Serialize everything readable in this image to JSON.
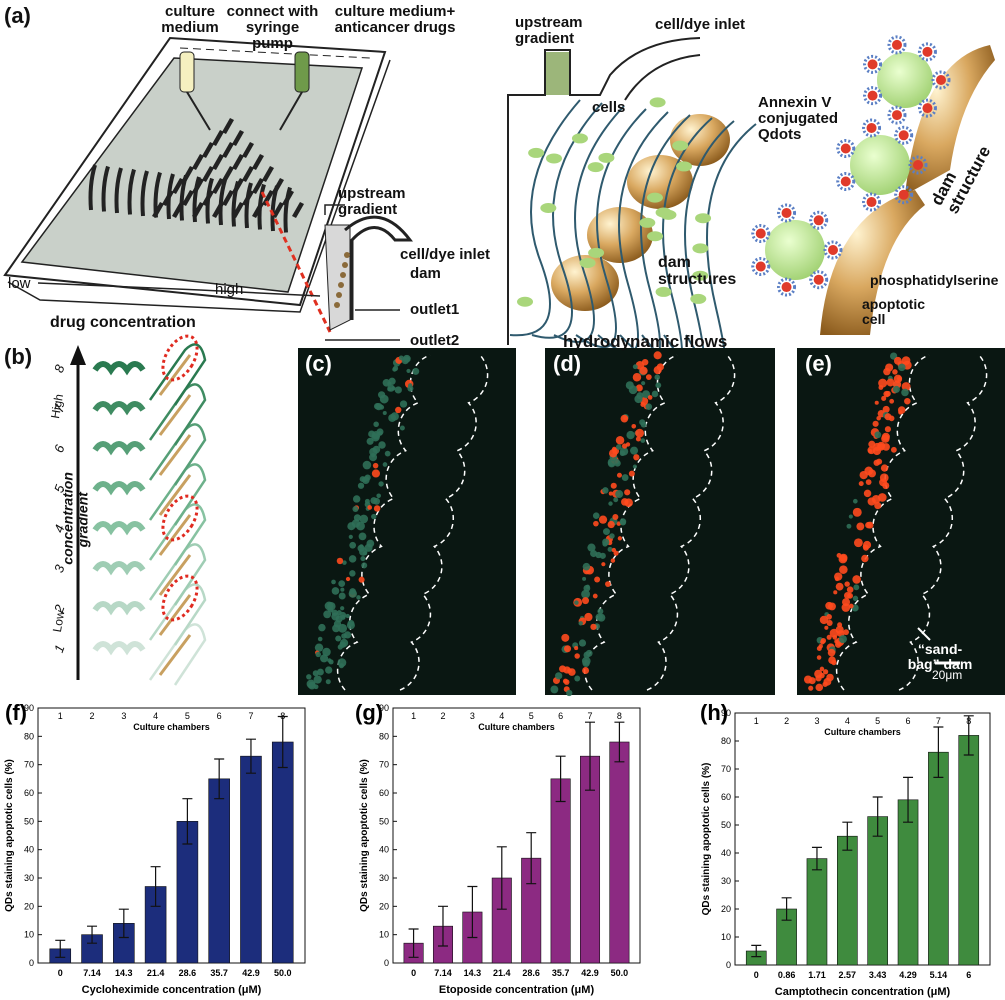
{
  "panel_a": {
    "label": "(a)",
    "culture_medium": "culture medium",
    "syringe": "connect with syringe pump",
    "drug_medium": "culture medium+ anticancer drugs",
    "inset_upstream": "upstream gradient",
    "inset_inlet": "cell/dye inlet",
    "inset_dam": "dam",
    "outlet1": "outlet1",
    "outlet2": "outlet2",
    "low": "low",
    "high": "high",
    "axis": "drug concentration",
    "mid_upstream": "upstream gradient",
    "mid_inlet": "cell/dye inlet",
    "cells": "cells",
    "dams": "dam structures",
    "flows": "hydrodynamic flows",
    "qdots": "Annexin V conjugated Qdots",
    "dam_structure": "dam structure",
    "ps": "phosphatidylserine",
    "apoptotic": "apoptotic cell"
  },
  "panel_b": {
    "label": "(b)",
    "chambers": [
      "1",
      "2",
      "3",
      "4",
      "5",
      "6",
      "7",
      "8"
    ],
    "high": "High",
    "low": "Low",
    "axis": "concentration gradient"
  },
  "panel_c": {
    "label": "(c)"
  },
  "panel_d": {
    "label": "(d)"
  },
  "panel_e": {
    "label": "(e)",
    "dam": "“sand-bag” dam",
    "scale": "20μm"
  },
  "chart_data": [
    {
      "type": "bar",
      "panel_label": "(f)",
      "categories": [
        "0",
        "7.14",
        "14.3",
        "21.4",
        "28.6",
        "35.7",
        "42.9",
        "50.0"
      ],
      "values": [
        5,
        10,
        14,
        27,
        50,
        65,
        73,
        78
      ],
      "errors": [
        3,
        3,
        5,
        7,
        8,
        7,
        6,
        9
      ],
      "color": "#1c2d7c",
      "x_label": "Cycloheximide concentration (μM)",
      "y_label": "QDs staining apoptotic cells (%)",
      "top_categories": [
        "1",
        "2",
        "3",
        "4",
        "5",
        "6",
        "7",
        "8"
      ],
      "top_label": "Culture chambers",
      "ylim": [
        0,
        90
      ],
      "yticks": [
        0,
        10,
        20,
        30,
        40,
        50,
        60,
        70,
        80,
        90
      ]
    },
    {
      "type": "bar",
      "panel_label": "(g)",
      "categories": [
        "0",
        "7.14",
        "14.3",
        "21.4",
        "28.6",
        "35.7",
        "42.9",
        "50.0"
      ],
      "values": [
        7,
        13,
        18,
        30,
        37,
        65,
        73,
        78
      ],
      "errors": [
        5,
        7,
        9,
        11,
        9,
        8,
        12,
        7
      ],
      "color": "#8c2a82",
      "x_label": "Etoposide concentration (μM)",
      "y_label": "QDs staining apoptotic cells (%)",
      "top_categories": [
        "1",
        "2",
        "3",
        "4",
        "5",
        "6",
        "7",
        "8"
      ],
      "top_label": "Culture chambers",
      "ylim": [
        0,
        90
      ],
      "yticks": [
        0,
        10,
        20,
        30,
        40,
        50,
        60,
        70,
        80,
        90
      ]
    },
    {
      "type": "bar",
      "panel_label": "(h)",
      "categories": [
        "0",
        "0.86",
        "1.71",
        "2.57",
        "3.43",
        "4.29",
        "5.14",
        "6"
      ],
      "values": [
        5,
        20,
        38,
        46,
        53,
        59,
        76,
        82
      ],
      "errors": [
        2,
        4,
        4,
        5,
        7,
        8,
        9,
        7
      ],
      "color": "#3f8b3e",
      "x_label": "Camptothecin concentration (μM)",
      "y_label": "QDs staining apoptotic cells (%)",
      "top_categories": [
        "1",
        "2",
        "3",
        "4",
        "5",
        "6",
        "7",
        "8"
      ],
      "top_label": "Culture chambers",
      "ylim": [
        0,
        90
      ],
      "yticks": [
        0,
        10,
        20,
        30,
        40,
        50,
        60,
        70,
        80,
        90
      ]
    }
  ]
}
